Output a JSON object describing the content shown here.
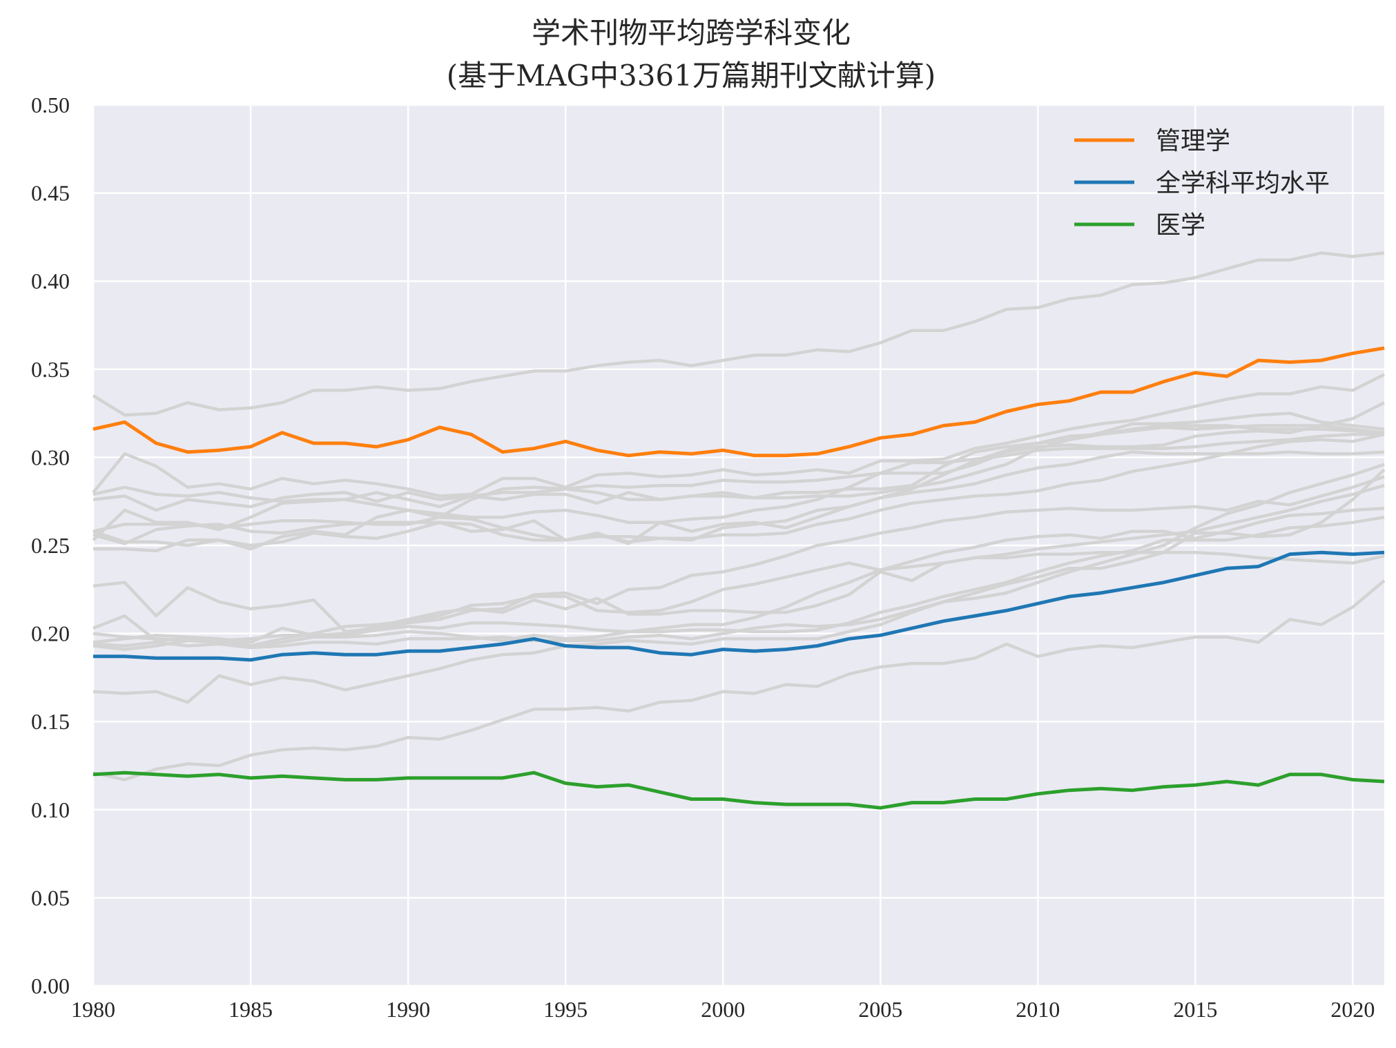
{
  "chart_data": {
    "type": "line",
    "title": "学术刊物平均跨学科变化",
    "subtitle": "(基于MAG中3361万篇期刊文献计算)",
    "xlabel": "",
    "ylabel": "",
    "xlim": [
      1980,
      2021
    ],
    "ylim": [
      0.0,
      0.5
    ],
    "grid": true,
    "legend_placement": "top-right",
    "x_ticks": [
      1980,
      1985,
      1990,
      1995,
      2000,
      2005,
      2010,
      2015,
      2020
    ],
    "y_ticks": [
      "0.00",
      "0.05",
      "0.10",
      "0.15",
      "0.20",
      "0.25",
      "0.30",
      "0.35",
      "0.40",
      "0.45",
      "0.50"
    ],
    "x": [
      1980,
      1981,
      1982,
      1983,
      1984,
      1985,
      1986,
      1987,
      1988,
      1989,
      1990,
      1991,
      1992,
      1993,
      1994,
      1995,
      1996,
      1997,
      1998,
      1999,
      2000,
      2001,
      2002,
      2003,
      2004,
      2005,
      2006,
      2007,
      2008,
      2009,
      2010,
      2011,
      2012,
      2013,
      2014,
      2015,
      2016,
      2017,
      2018,
      2019,
      2020,
      2021
    ],
    "series": [
      {
        "name": "管理学",
        "color": "#ff7f0e",
        "values": [
          0.316,
          0.32,
          0.308,
          0.303,
          0.304,
          0.306,
          0.314,
          0.308,
          0.308,
          0.306,
          0.31,
          0.317,
          0.313,
          0.303,
          0.305,
          0.309,
          0.304,
          0.301,
          0.303,
          0.302,
          0.304,
          0.301,
          0.301,
          0.302,
          0.306,
          0.311,
          0.313,
          0.318,
          0.32,
          0.326,
          0.33,
          0.332,
          0.337,
          0.337,
          0.343,
          0.348,
          0.346,
          0.355,
          0.354,
          0.355,
          0.359,
          0.362
        ]
      },
      {
        "name": "全学科平均水平",
        "color": "#1f77b4",
        "values": [
          0.187,
          0.187,
          0.186,
          0.186,
          0.186,
          0.185,
          0.188,
          0.189,
          0.188,
          0.188,
          0.19,
          0.19,
          0.192,
          0.194,
          0.197,
          0.193,
          0.192,
          0.192,
          0.189,
          0.188,
          0.191,
          0.19,
          0.191,
          0.193,
          0.197,
          0.199,
          0.203,
          0.207,
          0.21,
          0.213,
          0.217,
          0.221,
          0.223,
          0.226,
          0.229,
          0.233,
          0.237,
          0.238,
          0.245,
          0.246,
          0.245,
          0.246
        ]
      },
      {
        "name": "医学",
        "color": "#2ca02c",
        "values": [
          0.12,
          0.121,
          0.12,
          0.119,
          0.12,
          0.118,
          0.119,
          0.118,
          0.117,
          0.117,
          0.118,
          0.118,
          0.118,
          0.118,
          0.121,
          0.115,
          0.113,
          0.114,
          0.11,
          0.106,
          0.106,
          0.104,
          0.103,
          0.103,
          0.103,
          0.101,
          0.104,
          0.104,
          0.106,
          0.106,
          0.109,
          0.111,
          0.112,
          0.111,
          0.113,
          0.114,
          0.116,
          0.114,
          0.12,
          0.12,
          0.117,
          0.116
        ]
      }
    ],
    "background_series": [
      {
        "color": "#d3d3d3",
        "values": [
          0.335,
          0.324,
          0.325,
          0.331,
          0.327,
          0.328,
          0.331,
          0.338,
          0.338,
          0.34,
          0.338,
          0.339,
          0.343,
          0.346,
          0.349,
          0.349,
          0.352,
          0.354,
          0.355,
          0.352,
          0.355,
          0.358,
          0.358,
          0.361,
          0.36,
          0.365,
          0.372,
          0.372,
          0.377,
          0.384,
          0.385,
          0.39,
          0.392,
          0.398,
          0.399,
          0.402,
          0.407,
          0.412,
          0.412,
          0.416,
          0.414,
          0.416
        ]
      },
      {
        "color": "#d3d3d3",
        "values": [
          0.28,
          0.302,
          0.295,
          0.283,
          0.285,
          0.282,
          0.288,
          0.285,
          0.287,
          0.285,
          0.282,
          0.278,
          0.279,
          0.288,
          0.288,
          0.283,
          0.29,
          0.291,
          0.289,
          0.29,
          0.293,
          0.29,
          0.291,
          0.293,
          0.291,
          0.298,
          0.298,
          0.299,
          0.305,
          0.308,
          0.312,
          0.316,
          0.319,
          0.321,
          0.325,
          0.329,
          0.333,
          0.336,
          0.336,
          0.34,
          0.338,
          0.347
        ]
      },
      {
        "color": "#d3d3d3",
        "values": [
          0.276,
          0.278,
          0.27,
          0.276,
          0.274,
          0.272,
          0.277,
          0.279,
          0.28,
          0.275,
          0.28,
          0.276,
          0.278,
          0.28,
          0.28,
          0.282,
          0.284,
          0.283,
          0.284,
          0.284,
          0.287,
          0.286,
          0.286,
          0.287,
          0.289,
          0.291,
          0.291,
          0.291,
          0.296,
          0.303,
          0.306,
          0.307,
          0.306,
          0.306,
          0.307,
          0.312,
          0.314,
          0.315,
          0.314,
          0.318,
          0.322,
          0.331
        ]
      },
      {
        "color": "#d3d3d3",
        "values": [
          0.279,
          0.283,
          0.279,
          0.278,
          0.28,
          0.277,
          0.275,
          0.276,
          0.276,
          0.28,
          0.276,
          0.272,
          0.278,
          0.276,
          0.279,
          0.279,
          0.274,
          0.28,
          0.276,
          0.278,
          0.278,
          0.277,
          0.277,
          0.278,
          0.278,
          0.28,
          0.283,
          0.286,
          0.291,
          0.296,
          0.305,
          0.31,
          0.314,
          0.319,
          0.319,
          0.32,
          0.322,
          0.324,
          0.325,
          0.32,
          0.318,
          0.316
        ]
      },
      {
        "color": "#d3d3d3",
        "values": [
          0.258,
          0.262,
          0.262,
          0.262,
          0.26,
          0.262,
          0.264,
          0.264,
          0.263,
          0.262,
          0.262,
          0.266,
          0.276,
          0.282,
          0.283,
          0.282,
          0.28,
          0.276,
          0.276,
          0.278,
          0.28,
          0.277,
          0.28,
          0.28,
          0.282,
          0.282,
          0.284,
          0.295,
          0.303,
          0.306,
          0.308,
          0.31,
          0.313,
          0.315,
          0.317,
          0.316,
          0.317,
          0.318,
          0.318,
          0.318,
          0.316,
          0.314
        ]
      },
      {
        "color": "#d3d3d3",
        "values": [
          0.258,
          0.252,
          0.252,
          0.25,
          0.253,
          0.248,
          0.255,
          0.258,
          0.256,
          0.266,
          0.27,
          0.268,
          0.266,
          0.266,
          0.269,
          0.27,
          0.267,
          0.263,
          0.263,
          0.265,
          0.266,
          0.27,
          0.272,
          0.276,
          0.283,
          0.291,
          0.297,
          0.297,
          0.299,
          0.301,
          0.304,
          0.305,
          0.305,
          0.305,
          0.305,
          0.306,
          0.308,
          0.309,
          0.31,
          0.312,
          0.313,
          0.313
        ]
      },
      {
        "color": "#d3d3d3",
        "values": [
          0.253,
          0.27,
          0.263,
          0.263,
          0.259,
          0.266,
          0.274,
          0.275,
          0.276,
          0.273,
          0.27,
          0.266,
          0.265,
          0.26,
          0.256,
          0.253,
          0.256,
          0.252,
          0.254,
          0.253,
          0.26,
          0.262,
          0.264,
          0.27,
          0.272,
          0.277,
          0.28,
          0.282,
          0.285,
          0.29,
          0.294,
          0.296,
          0.3,
          0.303,
          0.302,
          0.302,
          0.302,
          0.302,
          0.303,
          0.302,
          0.302,
          0.303
        ]
      },
      {
        "color": "#d3d3d3",
        "values": [
          0.248,
          0.248,
          0.247,
          0.253,
          0.253,
          0.25,
          0.252,
          0.257,
          0.255,
          0.254,
          0.258,
          0.263,
          0.262,
          0.256,
          0.253,
          0.253,
          0.255,
          0.255,
          0.254,
          0.254,
          0.256,
          0.256,
          0.257,
          0.262,
          0.265,
          0.27,
          0.274,
          0.276,
          0.278,
          0.279,
          0.281,
          0.285,
          0.287,
          0.292,
          0.295,
          0.298,
          0.302,
          0.306,
          0.309,
          0.31,
          0.309,
          0.313
        ]
      },
      {
        "color": "#d3d3d3",
        "values": [
          0.256,
          0.251,
          0.259,
          0.261,
          0.262,
          0.258,
          0.257,
          0.26,
          0.262,
          0.263,
          0.263,
          0.263,
          0.258,
          0.259,
          0.264,
          0.253,
          0.257,
          0.251,
          0.263,
          0.258,
          0.262,
          0.263,
          0.26,
          0.266,
          0.272,
          0.277,
          0.282,
          0.29,
          0.298,
          0.304,
          0.308,
          0.312,
          0.313,
          0.316,
          0.318,
          0.318,
          0.318,
          0.316,
          0.316,
          0.316,
          0.315,
          0.314
        ]
      },
      {
        "color": "#d3d3d3",
        "values": [
          0.227,
          0.229,
          0.21,
          0.226,
          0.218,
          0.214,
          0.216,
          0.219,
          0.201,
          0.203,
          0.206,
          0.208,
          0.213,
          0.214,
          0.222,
          0.223,
          0.217,
          0.225,
          0.226,
          0.233,
          0.235,
          0.239,
          0.244,
          0.25,
          0.253,
          0.257,
          0.26,
          0.264,
          0.266,
          0.269,
          0.27,
          0.271,
          0.27,
          0.27,
          0.271,
          0.272,
          0.27,
          0.275,
          0.273,
          0.278,
          0.283,
          0.289
        ]
      },
      {
        "color": "#d3d3d3",
        "values": [
          0.203,
          0.21,
          0.196,
          0.197,
          0.197,
          0.195,
          0.203,
          0.199,
          0.2,
          0.204,
          0.208,
          0.212,
          0.214,
          0.212,
          0.219,
          0.214,
          0.22,
          0.211,
          0.211,
          0.213,
          0.213,
          0.212,
          0.212,
          0.216,
          0.222,
          0.235,
          0.23,
          0.24,
          0.243,
          0.245,
          0.248,
          0.25,
          0.252,
          0.254,
          0.256,
          0.258,
          0.262,
          0.266,
          0.27,
          0.275,
          0.279,
          0.284
        ]
      },
      {
        "color": "#d3d3d3",
        "values": [
          0.193,
          0.191,
          0.193,
          0.196,
          0.195,
          0.193,
          0.197,
          0.2,
          0.204,
          0.205,
          0.207,
          0.21,
          0.216,
          0.217,
          0.221,
          0.221,
          0.213,
          0.212,
          0.213,
          0.218,
          0.225,
          0.228,
          0.232,
          0.236,
          0.24,
          0.236,
          0.238,
          0.24,
          0.243,
          0.243,
          0.245,
          0.245,
          0.246,
          0.246,
          0.246,
          0.246,
          0.245,
          0.243,
          0.242,
          0.241,
          0.24,
          0.244
        ]
      },
      {
        "color": "#d3d3d3",
        "values": [
          0.195,
          0.197,
          0.199,
          0.198,
          0.197,
          0.193,
          0.195,
          0.198,
          0.198,
          0.199,
          0.201,
          0.2,
          0.198,
          0.196,
          0.199,
          0.197,
          0.198,
          0.201,
          0.203,
          0.205,
          0.205,
          0.209,
          0.215,
          0.223,
          0.229,
          0.236,
          0.241,
          0.246,
          0.249,
          0.253,
          0.255,
          0.256,
          0.254,
          0.258,
          0.258,
          0.254,
          0.258,
          0.263,
          0.267,
          0.268,
          0.27,
          0.271
        ]
      },
      {
        "color": "#d3d3d3",
        "values": [
          0.2,
          0.198,
          0.197,
          0.196,
          0.196,
          0.197,
          0.199,
          0.199,
          0.199,
          0.202,
          0.204,
          0.203,
          0.206,
          0.206,
          0.205,
          0.204,
          0.202,
          0.201,
          0.201,
          0.202,
          0.202,
          0.201,
          0.201,
          0.202,
          0.206,
          0.212,
          0.216,
          0.221,
          0.225,
          0.229,
          0.235,
          0.24,
          0.244,
          0.247,
          0.253,
          0.253,
          0.253,
          0.256,
          0.26,
          0.261,
          0.263,
          0.266
        ]
      },
      {
        "color": "#d3d3d3",
        "values": [
          0.194,
          0.193,
          0.195,
          0.193,
          0.194,
          0.192,
          0.193,
          0.195,
          0.195,
          0.194,
          0.197,
          0.197,
          0.197,
          0.198,
          0.196,
          0.196,
          0.196,
          0.198,
          0.199,
          0.197,
          0.2,
          0.203,
          0.205,
          0.204,
          0.205,
          0.208,
          0.213,
          0.218,
          0.22,
          0.223,
          0.229,
          0.235,
          0.24,
          0.245,
          0.25,
          0.26,
          0.268,
          0.273,
          0.28,
          0.285,
          0.29,
          0.296
        ]
      },
      {
        "color": "#d3d3d3",
        "values": [
          0.167,
          0.166,
          0.167,
          0.161,
          0.176,
          0.171,
          0.175,
          0.173,
          0.168,
          0.172,
          0.176,
          0.18,
          0.185,
          0.188,
          0.189,
          0.193,
          0.194,
          0.196,
          0.195,
          0.194,
          0.197,
          0.197,
          0.197,
          0.197,
          0.201,
          0.205,
          0.212,
          0.218,
          0.223,
          0.228,
          0.232,
          0.237,
          0.237,
          0.241,
          0.246,
          0.257,
          0.257,
          0.255,
          0.256,
          0.263,
          0.276,
          0.293
        ]
      },
      {
        "color": "#d3d3d3",
        "values": [
          0.121,
          0.117,
          0.123,
          0.126,
          0.125,
          0.131,
          0.134,
          0.135,
          0.134,
          0.136,
          0.141,
          0.14,
          0.145,
          0.151,
          0.157,
          0.157,
          0.158,
          0.156,
          0.161,
          0.162,
          0.167,
          0.166,
          0.171,
          0.17,
          0.177,
          0.181,
          0.183,
          0.183,
          0.186,
          0.194,
          0.187,
          0.191,
          0.193,
          0.192,
          0.195,
          0.198,
          0.198,
          0.195,
          0.208,
          0.205,
          0.215,
          0.23
        ]
      }
    ]
  }
}
